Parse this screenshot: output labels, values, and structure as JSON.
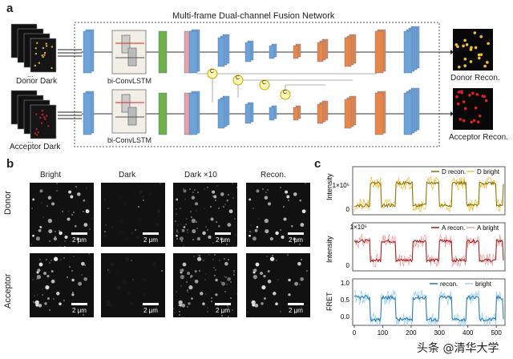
{
  "panel_a": {
    "label": "a",
    "title": "Multi-frame Dual-channel Fusion Network",
    "input_donor_label": "Donor Dark",
    "input_acceptor_label": "Acceptor Dark",
    "lstm_label_top": "bi-ConvLSTM",
    "lstm_label_bottom": "bi-ConvLSTM",
    "concat_symbol": "C",
    "ellipsis": "...",
    "output_donor_label": "Donor Recon.",
    "output_acceptor_label": "Acceptor Recon."
  },
  "panel_b": {
    "label": "b",
    "columns": [
      "Bright",
      "Dark",
      "Dark ×10",
      "Recon."
    ],
    "rows": [
      "Donor",
      "Acceptor"
    ],
    "scalebar_label": "2 μm"
  },
  "panel_c": {
    "label": "c",
    "chart_data": [
      {
        "type": "line",
        "ylabel": "Intensity",
        "ytick_labels": [
          "0",
          "1×10⁵"
        ],
        "series": [
          {
            "name": "D recon.",
            "color": "#8a6d00"
          },
          {
            "name": "D bright",
            "color": "#f0c44a"
          }
        ]
      },
      {
        "type": "line",
        "ylabel": "Intensity",
        "ytick_labels": [
          "0",
          "1×10⁵"
        ],
        "series": [
          {
            "name": "A recon.",
            "color": "#a01818"
          },
          {
            "name": "A bright",
            "color": "#f0a0a0"
          }
        ]
      },
      {
        "type": "line",
        "ylabel": "FRET",
        "ylim": [
          -0.1,
          1.1
        ],
        "yticks": [
          0.0,
          0.5,
          1.0
        ],
        "ytick_labels": [
          "0.0",
          "0.5",
          "1.0"
        ],
        "xticks": [
          0,
          100,
          200,
          300,
          400,
          500
        ],
        "xtick_labels": [
          "0",
          "100",
          "200",
          "300",
          "400",
          "500"
        ],
        "series": [
          {
            "name": "recon.",
            "color": "#1f77b4"
          },
          {
            "name": "bright",
            "color": "#9fd3f0"
          }
        ]
      }
    ]
  },
  "watermark": "头条 @清华大学"
}
